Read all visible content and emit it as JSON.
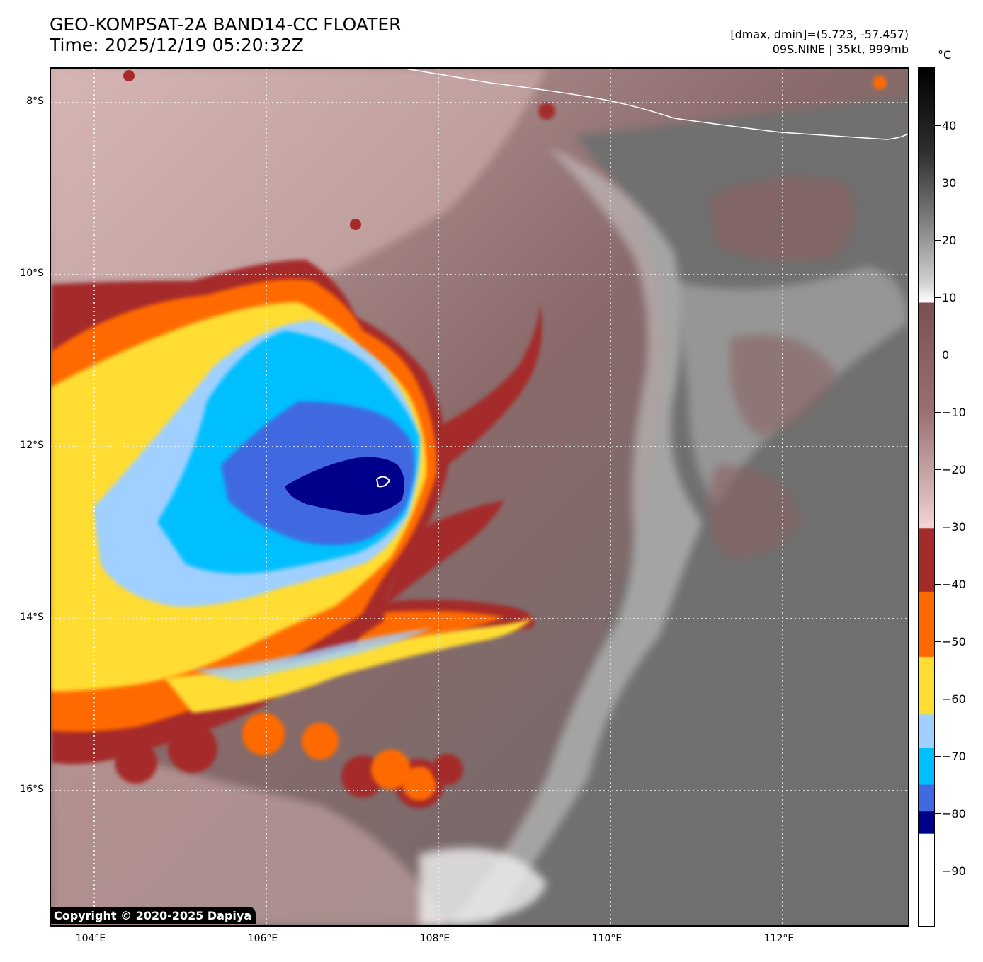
{
  "header": {
    "title_line1": "GEO-KOMPSAT-2A BAND14-CC FLOATER",
    "title_line2": "Time: 2025/12/19 05:20:32Z",
    "stats_line": "[dmax, dmin]=(5.723, -57.457)",
    "storm_line": "09S.NINE | 35kt, 999mb"
  },
  "map": {
    "lat_labels": [
      "8°S",
      "10°S",
      "12°S",
      "14°S",
      "16°S"
    ],
    "lon_labels": [
      "104°E",
      "106°E",
      "108°E",
      "110°E",
      "112°E"
    ],
    "copyright": "Copyright © 2020-2025 Dapiya"
  },
  "colorbar": {
    "unit": "°C",
    "tick_labels": [
      "40",
      "30",
      "20",
      "10",
      "0",
      "−10",
      "−20",
      "−30",
      "−40",
      "−50",
      "−60",
      "−70",
      "−80",
      "−90"
    ],
    "colors": {
      "warm_gray_top": "#000000",
      "gray_mid": "#808080",
      "white_10": "#ffffff",
      "brown_0": "#7a5050",
      "pink_neg30": "#f5d5d5",
      "dark_red": "#a52a2a",
      "orange": "#ff6a00",
      "yellow": "#ffdd33",
      "light_blue": "#a0d0ff",
      "cyan": "#00bfff",
      "royal_blue": "#4169e1",
      "navy": "#00008b",
      "white_cold": "#ffffff"
    }
  }
}
